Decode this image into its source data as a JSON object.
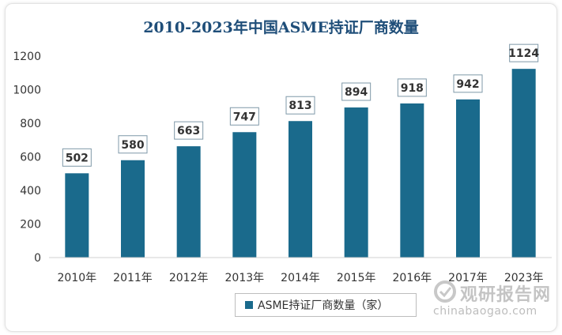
{
  "chart_data": {
    "type": "bar",
    "title": "2010-2023年中国ASME持证厂商数量",
    "categories": [
      "2010年",
      "2011年",
      "2012年",
      "2013年",
      "2014年",
      "2015年",
      "2016年",
      "2017年",
      "2023年"
    ],
    "series": [
      {
        "name": "ASME持证厂商数量（家）",
        "values": [
          502,
          580,
          663,
          747,
          813,
          894,
          918,
          942,
          1124
        ]
      }
    ],
    "ylim": [
      0,
      1200
    ],
    "yticks": [
      0,
      200,
      400,
      600,
      800,
      1000,
      1200
    ],
    "grid": false,
    "legend_position": "bottom",
    "colors": {
      "bar": "#1a6a8c",
      "title": "#1f4e79"
    }
  },
  "watermark": {
    "name": "观研报告网",
    "url": "chinabaogao.com"
  }
}
